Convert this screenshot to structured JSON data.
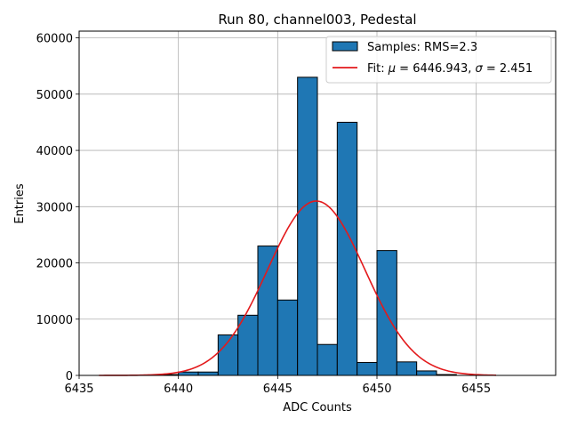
{
  "chart_data": {
    "type": "bar",
    "title": "Run 80, channel003, Pedestal",
    "xlabel": "ADC Counts",
    "ylabel": "Entries",
    "xlim": [
      6435,
      6459
    ],
    "ylim": [
      0,
      61200
    ],
    "xticks": [
      6435,
      6440,
      6445,
      6450,
      6455
    ],
    "yticks": [
      0,
      10000,
      20000,
      30000,
      40000,
      50000,
      60000
    ],
    "grid": true,
    "legend_position": "top-right",
    "histogram": {
      "name": "Samples: RMS=2.3",
      "color": "#1f77b4",
      "bin_width": 1,
      "bins": [
        {
          "x0": 6439.0,
          "value": 150
        },
        {
          "x0": 6440.0,
          "value": 600
        },
        {
          "x0": 6441.0,
          "value": 600
        },
        {
          "x0": 6442.0,
          "value": 7200
        },
        {
          "x0": 6443.0,
          "value": 10700
        },
        {
          "x0": 6444.0,
          "value": 23000
        },
        {
          "x0": 6445.0,
          "value": 13400
        },
        {
          "x0": 6446.0,
          "value": 53000
        },
        {
          "x0": 6447.0,
          "value": 5500
        },
        {
          "x0": 6448.0,
          "value": 45000
        },
        {
          "x0": 6449.0,
          "value": 2300
        },
        {
          "x0": 6450.0,
          "value": 22200
        },
        {
          "x0": 6451.0,
          "value": 2400
        },
        {
          "x0": 6452.0,
          "value": 800
        },
        {
          "x0": 6453.0,
          "value": 150
        }
      ]
    },
    "fit": {
      "name": "Fit: μ = 6446.943, σ = 2.451",
      "name_parts": [
        "Fit: ",
        "μ",
        " = 6446.943, ",
        "σ",
        " = 2.451"
      ],
      "color": "#e31a1c",
      "mu": 6446.943,
      "sigma": 2.451,
      "amplitude": 31000,
      "x_range": [
        6436,
        6456
      ]
    }
  }
}
